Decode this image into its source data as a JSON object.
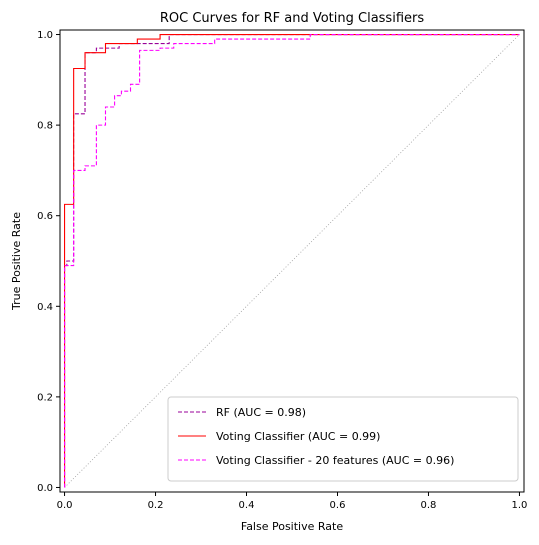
{
  "chart_data": {
    "type": "line",
    "title": "ROC Curves for RF and Voting Classifiers",
    "xlabel": "False Positive Rate",
    "ylabel": "True Positive Rate",
    "xlim": [
      -0.01,
      1.01
    ],
    "ylim": [
      -0.01,
      1.01
    ],
    "xticks": [
      {
        "value": 0.0,
        "label": "0.0"
      },
      {
        "value": 0.2,
        "label": "0.2"
      },
      {
        "value": 0.4,
        "label": "0.4"
      },
      {
        "value": 0.6,
        "label": "0.6"
      },
      {
        "value": 0.8,
        "label": "0.8"
      },
      {
        "value": 1.0,
        "label": "1.0"
      }
    ],
    "yticks": [
      {
        "value": 0.0,
        "label": "0.0"
      },
      {
        "value": 0.2,
        "label": "0.2"
      },
      {
        "value": 0.4,
        "label": "0.4"
      },
      {
        "value": 0.6,
        "label": "0.6"
      },
      {
        "value": 0.8,
        "label": "0.8"
      },
      {
        "value": 1.0,
        "label": "1.0"
      }
    ],
    "grid": false,
    "legend_position": "lower-right",
    "diagonal": {
      "x": [
        0,
        1
      ],
      "y": [
        0,
        1
      ],
      "color": "#a0a0a0",
      "style": "dotted"
    },
    "series": [
      {
        "name": "RF (AUC = 0.98)",
        "color": "#990099",
        "style": "dashed",
        "x": [
          0,
          0,
          0.005,
          0.005,
          0.02,
          0.02,
          0.045,
          0.045,
          0.07,
          0.07,
          0.12,
          0.12,
          0.23,
          0.23,
          1.0
        ],
        "y": [
          0,
          0.49,
          0.49,
          0.5,
          0.5,
          0.825,
          0.825,
          0.96,
          0.96,
          0.97,
          0.97,
          0.98,
          0.98,
          1.0,
          1.0
        ]
      },
      {
        "name": "Voting Classifier (AUC = 0.99)",
        "color": "#ff0000",
        "style": "solid",
        "x": [
          0,
          0,
          0.005,
          0.005,
          0.02,
          0.02,
          0.045,
          0.045,
          0.09,
          0.09,
          0.16,
          0.16,
          0.21,
          0.21,
          1.0
        ],
        "y": [
          0,
          0.625,
          0.625,
          0.625,
          0.625,
          0.925,
          0.925,
          0.96,
          0.96,
          0.98,
          0.98,
          0.99,
          0.99,
          1.0,
          1.0
        ]
      },
      {
        "name": "Voting Classifier - 20 features (AUC = 0.96)",
        "color": "#ff00ff",
        "style": "dashed",
        "x": [
          0,
          0,
          0.005,
          0.005,
          0.02,
          0.02,
          0.045,
          0.045,
          0.07,
          0.07,
          0.09,
          0.09,
          0.11,
          0.11,
          0.125,
          0.125,
          0.145,
          0.145,
          0.165,
          0.165,
          0.21,
          0.21,
          0.24,
          0.24,
          0.33,
          0.33,
          0.54,
          0.54,
          1.0
        ],
        "y": [
          0,
          0.49,
          0.49,
          0.49,
          0.49,
          0.7,
          0.7,
          0.71,
          0.71,
          0.8,
          0.8,
          0.84,
          0.84,
          0.865,
          0.865,
          0.875,
          0.875,
          0.89,
          0.89,
          0.965,
          0.965,
          0.97,
          0.97,
          0.98,
          0.98,
          0.99,
          0.99,
          1.0,
          1.0
        ]
      }
    ]
  }
}
